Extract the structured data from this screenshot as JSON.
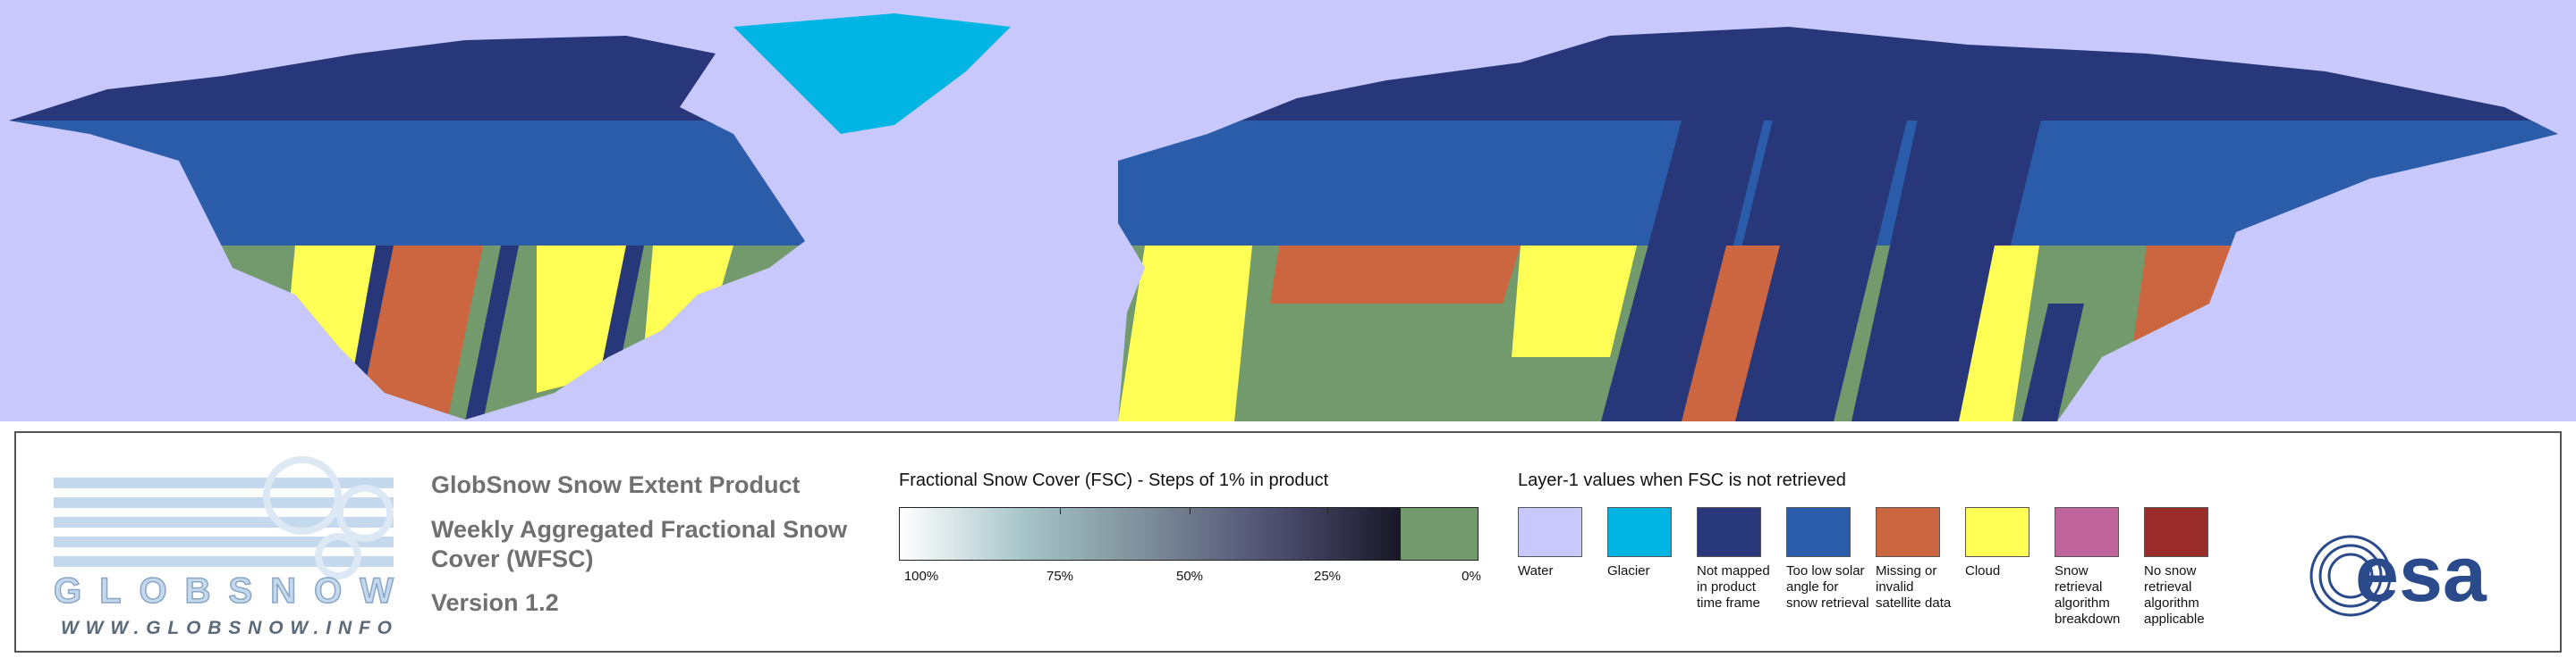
{
  "logo": {
    "name": "GLOBSNOW",
    "url": "WWW.GLOBSNOW.INFO"
  },
  "product": {
    "title": "GlobSnow Snow Extent Product",
    "subtitle": "Weekly Aggregated Fractional Snow Cover (WFSC)",
    "version": "Version 1.2"
  },
  "fsc_scale": {
    "title": "Fractional Snow Cover (FSC) - Steps of 1% in product",
    "labels": [
      "100%",
      "75%",
      "50%",
      "25%",
      "0%"
    ]
  },
  "layer1": {
    "title": "Layer-1 values when FSC is not retrieved",
    "items": [
      {
        "label": "Water",
        "color": "#c8c8fc"
      },
      {
        "label": "Glacier",
        "color": "#00b4e4"
      },
      {
        "label": "Not mapped in product time frame",
        "color": "#27377a"
      },
      {
        "label": "Too low solar angle for snow retrieval",
        "color": "#2a5caa"
      },
      {
        "label": "Missing or invalid satellite data",
        "color": "#cc6640"
      },
      {
        "label": "Cloud",
        "color": "#ffff55"
      },
      {
        "label": "Snow retrieval algorithm breakdown",
        "color": "#c0649c"
      },
      {
        "label": "No snow retrieval algorithm applicable",
        "color": "#9a2c2c"
      }
    ]
  },
  "esa": "esa"
}
